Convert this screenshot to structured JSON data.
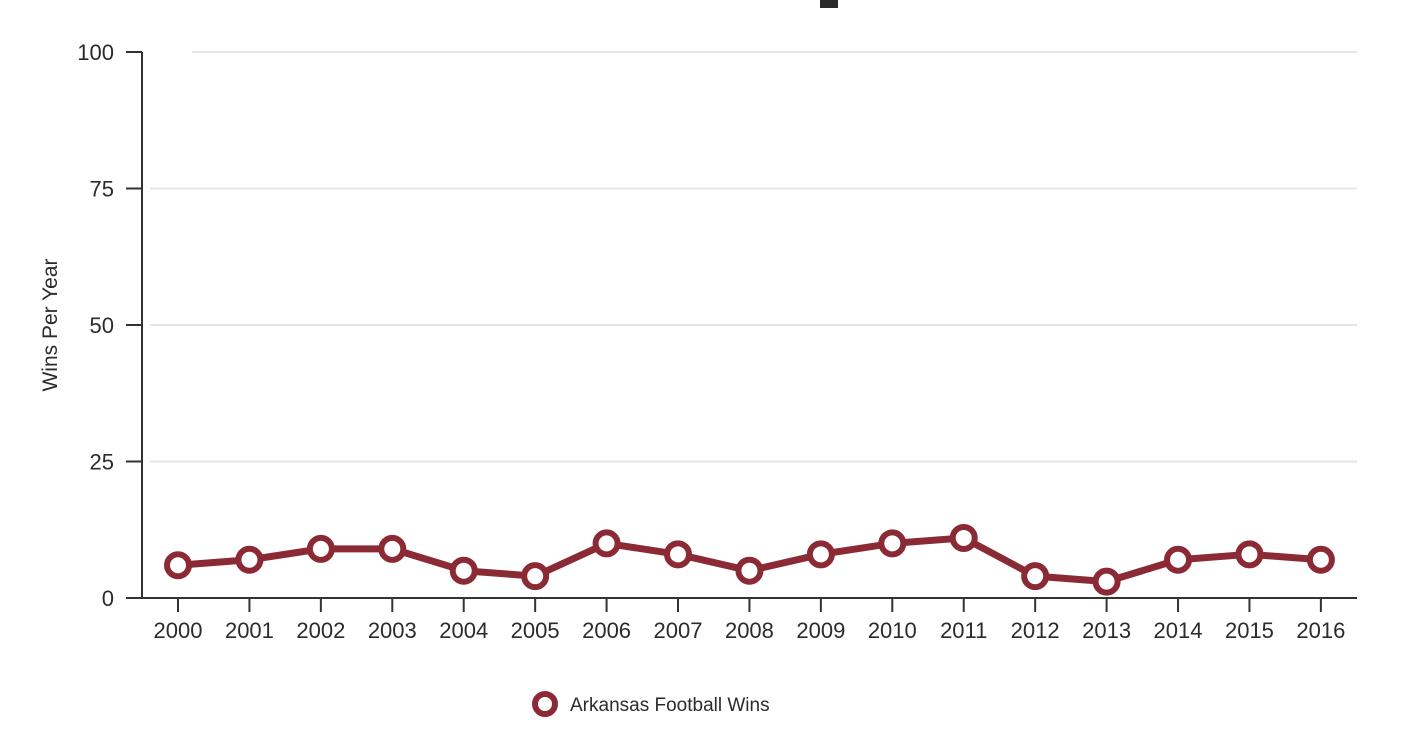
{
  "chart_data": {
    "type": "line",
    "ylabel": "Wins Per Year",
    "ylim": [
      0,
      100
    ],
    "yticks": [
      0,
      25,
      50,
      75,
      100
    ],
    "grid": true,
    "legend_position": "bottom-center",
    "categories": [
      "2000",
      "2001",
      "2002",
      "2003",
      "2004",
      "2005",
      "2006",
      "2007",
      "2008",
      "2009",
      "2010",
      "2011",
      "2012",
      "2013",
      "2014",
      "2015",
      "2016"
    ],
    "series": [
      {
        "name": "Arkansas Football Wins",
        "color": "#8b2a35",
        "values": [
          6,
          7,
          9,
          9,
          5,
          4,
          10,
          8,
          5,
          8,
          10,
          11,
          4,
          3,
          7,
          8,
          7
        ]
      }
    ]
  }
}
